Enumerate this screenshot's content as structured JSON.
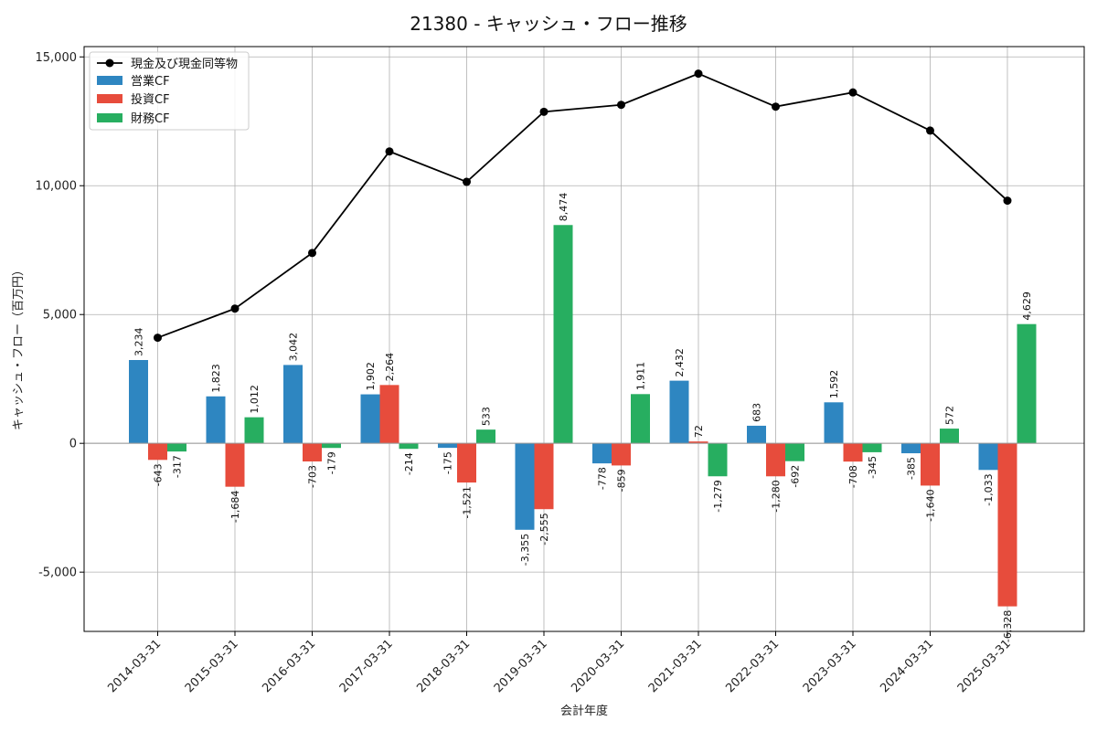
{
  "chart_data": {
    "type": "bar",
    "title": "21380 - キャッシュ・フロー推移",
    "xlabel": "会計年度",
    "ylabel": "キャッシュ・フロー（百万円）",
    "categories": [
      "2014-03-31",
      "2015-03-31",
      "2016-03-31",
      "2017-03-31",
      "2018-03-31",
      "2019-03-31",
      "2020-03-31",
      "2021-03-31",
      "2022-03-31",
      "2023-03-31",
      "2024-03-31",
      "2025-03-31"
    ],
    "series": [
      {
        "name": "営業CF",
        "type": "bar",
        "color": "#2e86c1",
        "values": [
          3234,
          1823,
          3042,
          1902,
          -175,
          -3355,
          -778,
          2432,
          683,
          1592,
          -385,
          -1033
        ]
      },
      {
        "name": "投資CF",
        "type": "bar",
        "color": "#e74c3c",
        "values": [
          -643,
          -1684,
          -703,
          2264,
          -1521,
          -2555,
          -859,
          72,
          -1280,
          -708,
          -1640,
          -6328
        ]
      },
      {
        "name": "財務CF",
        "type": "bar",
        "color": "#27ae60",
        "values": [
          -317,
          1012,
          -179,
          -214,
          533,
          8474,
          1911,
          -1279,
          -692,
          -345,
          572,
          4629
        ]
      }
    ],
    "line": {
      "name": "現金及び現金同等物",
      "color": "#000000",
      "values": [
        4100,
        5230,
        7390,
        11330,
        10150,
        12870,
        13140,
        14350,
        13070,
        13620,
        12140,
        9420
      ]
    },
    "yticks": [
      -5000,
      0,
      5000,
      10000,
      15000
    ],
    "ytick_labels": [
      "-5,000",
      "0",
      "5,000",
      "10,000",
      "15,000"
    ],
    "ylim": [
      -7300,
      15400
    ],
    "grid": true,
    "legend_position": "top-left"
  }
}
